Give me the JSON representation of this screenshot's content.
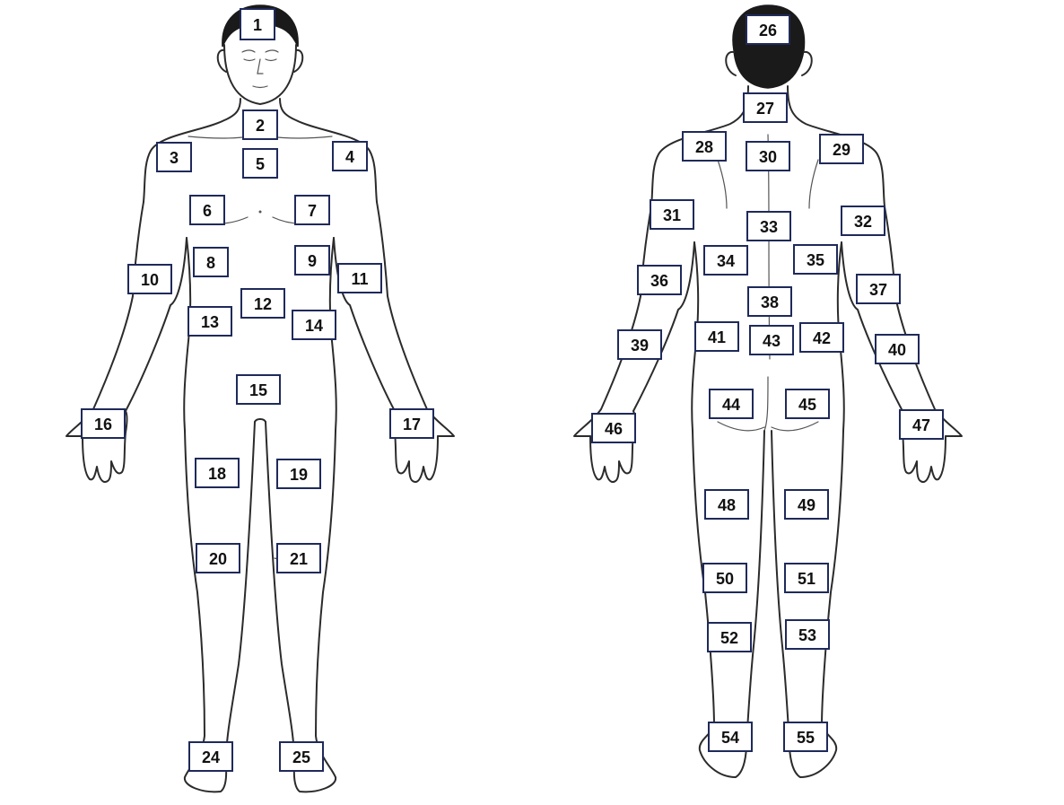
{
  "body_map": {
    "front_view": {
      "regions": [
        {
          "label": "1"
        },
        {
          "label": "2"
        },
        {
          "label": "3"
        },
        {
          "label": "4"
        },
        {
          "label": "5"
        },
        {
          "label": "6"
        },
        {
          "label": "7"
        },
        {
          "label": "8"
        },
        {
          "label": "9"
        },
        {
          "label": "10"
        },
        {
          "label": "11"
        },
        {
          "label": "12"
        },
        {
          "label": "13"
        },
        {
          "label": "14"
        },
        {
          "label": "15"
        },
        {
          "label": "16"
        },
        {
          "label": "17"
        },
        {
          "label": "18"
        },
        {
          "label": "19"
        },
        {
          "label": "20"
        },
        {
          "label": "21"
        },
        {
          "label": "24"
        },
        {
          "label": "25"
        }
      ]
    },
    "back_view": {
      "regions": [
        {
          "label": "26"
        },
        {
          "label": "27"
        },
        {
          "label": "28"
        },
        {
          "label": "29"
        },
        {
          "label": "30"
        },
        {
          "label": "31"
        },
        {
          "label": "32"
        },
        {
          "label": "33"
        },
        {
          "label": "34"
        },
        {
          "label": "35"
        },
        {
          "label": "36"
        },
        {
          "label": "37"
        },
        {
          "label": "38"
        },
        {
          "label": "39"
        },
        {
          "label": "40"
        },
        {
          "label": "41"
        },
        {
          "label": "42"
        },
        {
          "label": "43"
        },
        {
          "label": "44"
        },
        {
          "label": "45"
        },
        {
          "label": "46"
        },
        {
          "label": "47"
        },
        {
          "label": "48"
        },
        {
          "label": "49"
        },
        {
          "label": "50"
        },
        {
          "label": "51"
        },
        {
          "label": "52"
        },
        {
          "label": "53"
        },
        {
          "label": "54"
        },
        {
          "label": "55"
        }
      ]
    }
  },
  "colors": {
    "outline": "#2b2b2b",
    "box_border": "#1f2a5a",
    "label_text": "#111111",
    "background": "#ffffff"
  }
}
